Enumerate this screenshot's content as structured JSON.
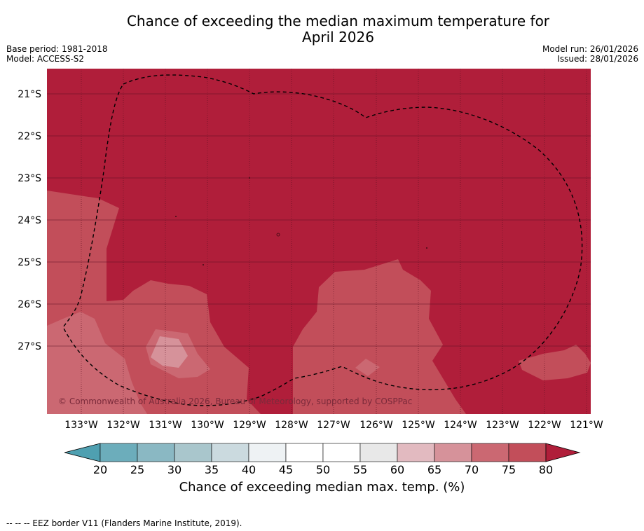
{
  "title": {
    "line1": "Chance of exceeding the median maximum temperature for",
    "line2": "April 2026"
  },
  "header_left": {
    "base_period": "Base period: 1981-2018",
    "model": "Model: ACCESS-S2"
  },
  "header_right": {
    "model_run": "Model run: 26/01/2026",
    "issued": "Issued: 28/01/2026"
  },
  "map": {
    "copyright": "© Commonwealth of Australia 2026, Bureau of Meteorology, supported by COSPPac",
    "lat_labels": [
      "21°S",
      "22°S",
      "23°S",
      "24°S",
      "25°S",
      "26°S",
      "27°S"
    ],
    "lon_labels": [
      "133°W",
      "132°W",
      "131°W",
      "130°W",
      "129°W",
      "128°W",
      "127°W",
      "126°W",
      "125°W",
      "124°W",
      "123°W",
      "122°W",
      "121°W"
    ],
    "dominant_category": "80+",
    "colors": {
      "c80plus": "#b01e3a",
      "c75_80": "#c24e5a",
      "c70_75": "#cb6872",
      "c65_70": "#d6929a",
      "c60_65": "#e2bac0",
      "c55_60": "#e8e8e8",
      "c45_55": "#ffffff",
      "c40_45": "#eef2f4",
      "c35_40": "#cbdadf",
      "c30_35": "#a9c6cc",
      "c25_30": "#8ab8c3",
      "c20_25": "#6cadbb",
      "below20": "#4fa0b1"
    }
  },
  "legend": {
    "ticks": [
      "20",
      "25",
      "30",
      "35",
      "40",
      "45",
      "50",
      "55",
      "60",
      "65",
      "70",
      "75",
      "80"
    ],
    "caption": "Chance of exceeding median max. temp. (%)",
    "bin_colors": [
      "#6cadbb",
      "#8ab8c3",
      "#a9c6cc",
      "#cbdadf",
      "#eef2f4",
      "#ffffff",
      "#ffffff",
      "#e8e8e8",
      "#e2bac0",
      "#d6929a",
      "#cb6872",
      "#c24e5a"
    ],
    "low_extend_color": "#4fa0b1",
    "high_extend_color": "#b01e3a"
  },
  "footnote": "--  --  -- EEZ border V11 (Flanders Marine Institute, 2019)."
}
